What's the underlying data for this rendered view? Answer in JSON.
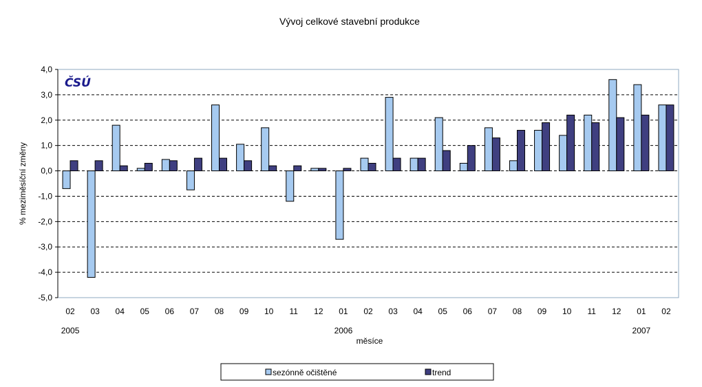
{
  "chart_data": {
    "type": "bar",
    "title": "Vývoj celkové stavební produkce",
    "xlabel": "měsíce",
    "ylabel": "% meziměsíční změny",
    "ylim": [
      -5.0,
      4.0
    ],
    "yticks": [
      "4,0",
      "3,0",
      "2,0",
      "1,0",
      "0,0",
      "-1,0",
      "-2,0",
      "-3,0",
      "-4,0",
      "-5,0"
    ],
    "ytick_values": [
      4,
      3,
      2,
      1,
      0,
      -1,
      -2,
      -3,
      -4,
      -5
    ],
    "grid": true,
    "legend_position": "bottom",
    "logo_text": "ČSÚ",
    "categories": [
      "02",
      "03",
      "04",
      "05",
      "06",
      "07",
      "08",
      "09",
      "10",
      "11",
      "12",
      "01",
      "02",
      "03",
      "04",
      "05",
      "06",
      "07",
      "08",
      "09",
      "10",
      "11",
      "12",
      "01",
      "02"
    ],
    "year_labels": [
      {
        "label": "2005",
        "category_index": 0
      },
      {
        "label": "2006",
        "category_index": 11
      },
      {
        "label": "2007",
        "category_index": 23
      }
    ],
    "series": [
      {
        "name": "sezónně očištěné",
        "color": "#a6caf0",
        "values": [
          -0.7,
          -4.2,
          1.8,
          0.1,
          0.45,
          -0.75,
          2.6,
          1.05,
          1.7,
          -1.2,
          0.1,
          -2.7,
          0.5,
          2.9,
          0.5,
          2.1,
          0.3,
          1.7,
          0.4,
          1.6,
          1.4,
          2.2,
          3.6,
          3.4,
          2.6
        ]
      },
      {
        "name": "trend",
        "color": "#3f3f80",
        "values": [
          0.4,
          0.4,
          0.2,
          0.3,
          0.4,
          0.5,
          0.5,
          0.4,
          0.2,
          0.2,
          0.1,
          0.1,
          0.3,
          0.5,
          0.5,
          0.8,
          1.0,
          1.3,
          1.6,
          1.9,
          2.2,
          1.9,
          2.1,
          2.2,
          2.6
        ]
      }
    ]
  }
}
